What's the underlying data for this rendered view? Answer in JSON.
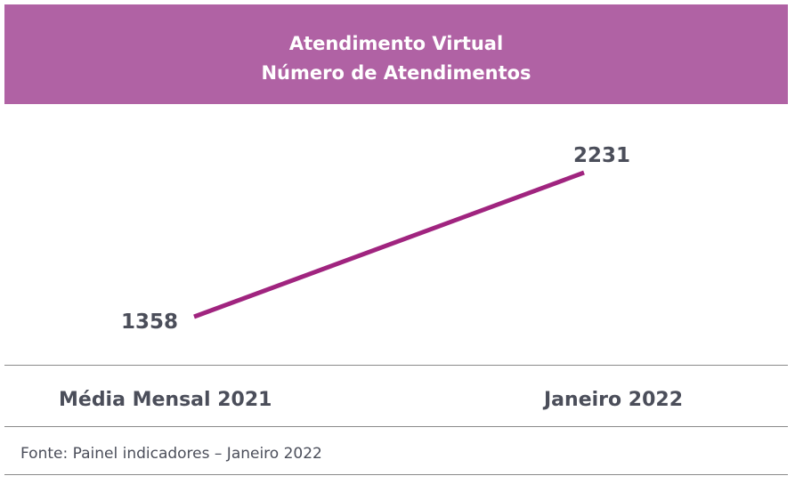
{
  "header": {
    "title_line1": "Atendimento Virtual",
    "title_line2": "Número de Atendimentos",
    "background_color": "#b062a4"
  },
  "chart_data": {
    "type": "line",
    "title": "Atendimento Virtual Número de Atendimentos",
    "categories": [
      "Média Mensal 2021",
      "Janeiro 2022"
    ],
    "series": [
      {
        "values": [
          1358,
          2231
        ],
        "data_labels": [
          "1358",
          "2231"
        ],
        "color": "#a0247f"
      }
    ],
    "xlabel": "",
    "ylabel": "",
    "grid": false,
    "legend": "none"
  },
  "footer": {
    "source": "Fonte: Painel indicadores – Janeiro 2022"
  }
}
